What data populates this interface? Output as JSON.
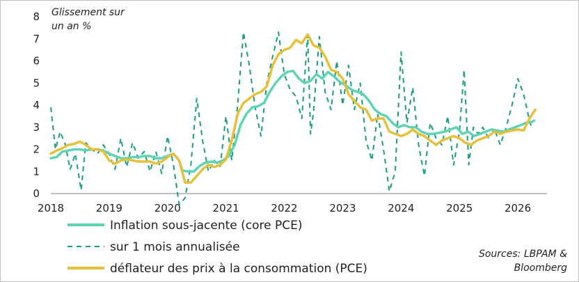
{
  "chart_data": {
    "type": "line",
    "ylabel_lines": [
      "Glissement sur",
      "un an %"
    ],
    "ylim": [
      0,
      8
    ],
    "yticks": [
      0,
      1,
      2,
      3,
      4,
      5,
      6,
      7,
      8
    ],
    "xlim": [
      2018,
      2026.5
    ],
    "xticks": [
      "2018",
      "2019",
      "2020",
      "2021",
      "2022",
      "2023",
      "2024",
      "2025",
      "2026"
    ],
    "legend_position": "bottom-left",
    "source_lines": [
      "Sources: LBPAM &",
      "Bloomberg"
    ],
    "series": [
      {
        "name": "Inflation sous-jacente (core PCE)",
        "color": "#5fd3b3",
        "style": "solid",
        "points": [
          [
            2018.0,
            1.6
          ],
          [
            2018.1,
            1.65
          ],
          [
            2018.2,
            1.9
          ],
          [
            2018.3,
            1.95
          ],
          [
            2018.4,
            2.0
          ],
          [
            2018.5,
            2.0
          ],
          [
            2018.6,
            1.95
          ],
          [
            2018.7,
            2.0
          ],
          [
            2018.8,
            2.0
          ],
          [
            2018.9,
            1.95
          ],
          [
            2019.0,
            1.8
          ],
          [
            2019.1,
            1.7
          ],
          [
            2019.2,
            1.6
          ],
          [
            2019.3,
            1.6
          ],
          [
            2019.4,
            1.65
          ],
          [
            2019.5,
            1.65
          ],
          [
            2019.6,
            1.7
          ],
          [
            2019.7,
            1.7
          ],
          [
            2019.8,
            1.6
          ],
          [
            2019.9,
            1.6
          ],
          [
            2020.0,
            1.7
          ],
          [
            2020.1,
            1.8
          ],
          [
            2020.2,
            1.5
          ],
          [
            2020.25,
            1.05
          ],
          [
            2020.35,
            1.0
          ],
          [
            2020.45,
            1.0
          ],
          [
            2020.55,
            1.25
          ],
          [
            2020.65,
            1.4
          ],
          [
            2020.75,
            1.45
          ],
          [
            2020.85,
            1.4
          ],
          [
            2020.95,
            1.5
          ],
          [
            2021.05,
            1.7
          ],
          [
            2021.15,
            2.2
          ],
          [
            2021.25,
            3.1
          ],
          [
            2021.35,
            3.6
          ],
          [
            2021.45,
            3.9
          ],
          [
            2021.55,
            3.95
          ],
          [
            2021.65,
            4.1
          ],
          [
            2021.75,
            4.6
          ],
          [
            2021.85,
            5.0
          ],
          [
            2021.95,
            5.3
          ],
          [
            2022.05,
            5.5
          ],
          [
            2022.15,
            5.55
          ],
          [
            2022.25,
            5.2
          ],
          [
            2022.35,
            5.0
          ],
          [
            2022.45,
            5.1
          ],
          [
            2022.55,
            5.4
          ],
          [
            2022.65,
            5.2
          ],
          [
            2022.75,
            5.5
          ],
          [
            2022.85,
            5.3
          ],
          [
            2022.95,
            5.05
          ],
          [
            2023.05,
            4.9
          ],
          [
            2023.15,
            4.7
          ],
          [
            2023.25,
            4.6
          ],
          [
            2023.35,
            4.5
          ],
          [
            2023.45,
            4.2
          ],
          [
            2023.55,
            3.8
          ],
          [
            2023.65,
            3.6
          ],
          [
            2023.75,
            3.5
          ],
          [
            2023.85,
            3.2
          ],
          [
            2023.95,
            3.0
          ],
          [
            2024.05,
            3.1
          ],
          [
            2024.15,
            3.0
          ],
          [
            2024.25,
            3.0
          ],
          [
            2024.35,
            2.8
          ],
          [
            2024.45,
            2.7
          ],
          [
            2024.55,
            2.7
          ],
          [
            2024.65,
            2.75
          ],
          [
            2024.75,
            2.8
          ],
          [
            2024.85,
            2.9
          ],
          [
            2024.95,
            3.0
          ],
          [
            2025.05,
            2.7
          ],
          [
            2025.15,
            2.8
          ],
          [
            2025.25,
            2.6
          ],
          [
            2025.35,
            2.7
          ],
          [
            2025.45,
            2.8
          ],
          [
            2025.55,
            2.9
          ],
          [
            2025.65,
            2.85
          ],
          [
            2025.75,
            2.8
          ],
          [
            2025.85,
            2.9
          ],
          [
            2025.95,
            3.0
          ],
          [
            2026.05,
            3.1
          ],
          [
            2026.15,
            3.2
          ],
          [
            2026.25,
            3.25
          ],
          [
            2026.28,
            3.3
          ]
        ]
      },
      {
        "name": "sur 1 mois annualisée",
        "color": "#1a9c82",
        "style": "dashed",
        "points": [
          [
            2018.0,
            3.9
          ],
          [
            2018.08,
            2.0
          ],
          [
            2018.16,
            2.8
          ],
          [
            2018.25,
            2.2
          ],
          [
            2018.33,
            1.1
          ],
          [
            2018.42,
            1.8
          ],
          [
            2018.52,
            0.15
          ],
          [
            2018.6,
            2.3
          ],
          [
            2018.7,
            2.0
          ],
          [
            2018.8,
            1.8
          ],
          [
            2018.9,
            2.2
          ],
          [
            2019.0,
            1.8
          ],
          [
            2019.1,
            1.1
          ],
          [
            2019.2,
            2.5
          ],
          [
            2019.3,
            1.2
          ],
          [
            2019.4,
            2.3
          ],
          [
            2019.5,
            1.6
          ],
          [
            2019.6,
            1.9
          ],
          [
            2019.7,
            1.0
          ],
          [
            2019.8,
            1.9
          ],
          [
            2019.9,
            0.9
          ],
          [
            2020.0,
            2.6
          ],
          [
            2020.1,
            1.3
          ],
          [
            2020.2,
            -0.5
          ],
          [
            2020.3,
            -0.2
          ],
          [
            2020.4,
            1.3
          ],
          [
            2020.5,
            4.3
          ],
          [
            2020.6,
            2.4
          ],
          [
            2020.7,
            1.0
          ],
          [
            2020.8,
            1.5
          ],
          [
            2020.9,
            1.2
          ],
          [
            2021.0,
            3.5
          ],
          [
            2021.1,
            1.5
          ],
          [
            2021.2,
            4.0
          ],
          [
            2021.3,
            7.3
          ],
          [
            2021.4,
            5.8
          ],
          [
            2021.5,
            3.9
          ],
          [
            2021.6,
            2.6
          ],
          [
            2021.7,
            5.0
          ],
          [
            2021.8,
            6.2
          ],
          [
            2021.9,
            7.3
          ],
          [
            2022.0,
            5.4
          ],
          [
            2022.1,
            4.7
          ],
          [
            2022.2,
            4.4
          ],
          [
            2022.3,
            3.4
          ],
          [
            2022.4,
            7.2
          ],
          [
            2022.45,
            2.7
          ],
          [
            2022.5,
            3.7
          ],
          [
            2022.6,
            7.1
          ],
          [
            2022.7,
            4.6
          ],
          [
            2022.8,
            3.8
          ],
          [
            2022.9,
            6.0
          ],
          [
            2023.0,
            4.0
          ],
          [
            2023.1,
            5.8
          ],
          [
            2023.2,
            3.8
          ],
          [
            2023.3,
            5.0
          ],
          [
            2023.4,
            2.4
          ],
          [
            2023.5,
            1.5
          ],
          [
            2023.6,
            3.6
          ],
          [
            2023.7,
            2.0
          ],
          [
            2023.8,
            0.1
          ],
          [
            2023.9,
            1.0
          ],
          [
            2024.0,
            6.4
          ],
          [
            2024.1,
            3.2
          ],
          [
            2024.2,
            4.8
          ],
          [
            2024.3,
            2.2
          ],
          [
            2024.4,
            0.8
          ],
          [
            2024.5,
            3.2
          ],
          [
            2024.6,
            2.5
          ],
          [
            2024.7,
            2.2
          ],
          [
            2024.8,
            3.5
          ],
          [
            2024.9,
            1.3
          ],
          [
            2025.0,
            2.8
          ],
          [
            2025.08,
            5.6
          ],
          [
            2025.16,
            1.3
          ],
          [
            2025.24,
            3.0
          ],
          [
            2025.32,
            2.7
          ],
          [
            2025.4,
            3.0
          ],
          [
            2025.5,
            2.5
          ],
          [
            2025.6,
            2.9
          ],
          [
            2025.7,
            2.2
          ],
          [
            2025.8,
            3.0
          ],
          [
            2025.9,
            4.0
          ],
          [
            2026.0,
            5.2
          ],
          [
            2026.1,
            4.5
          ],
          [
            2026.2,
            3.3
          ],
          [
            2026.25,
            2.9
          ]
        ]
      },
      {
        "name": "déflateur des prix à la consommation (PCE)",
        "color": "#e6c03a",
        "style": "solid",
        "points": [
          [
            2018.0,
            1.8
          ],
          [
            2018.1,
            1.95
          ],
          [
            2018.2,
            2.05
          ],
          [
            2018.3,
            2.2
          ],
          [
            2018.4,
            2.25
          ],
          [
            2018.5,
            2.35
          ],
          [
            2018.6,
            2.2
          ],
          [
            2018.7,
            2.0
          ],
          [
            2018.8,
            2.0
          ],
          [
            2018.9,
            1.9
          ],
          [
            2019.0,
            1.5
          ],
          [
            2019.1,
            1.35
          ],
          [
            2019.2,
            1.5
          ],
          [
            2019.3,
            1.55
          ],
          [
            2019.4,
            1.5
          ],
          [
            2019.5,
            1.45
          ],
          [
            2019.6,
            1.45
          ],
          [
            2019.7,
            1.45
          ],
          [
            2019.8,
            1.35
          ],
          [
            2019.9,
            1.45
          ],
          [
            2020.0,
            1.65
          ],
          [
            2020.1,
            1.8
          ],
          [
            2020.2,
            1.5
          ],
          [
            2020.3,
            0.5
          ],
          [
            2020.4,
            0.5
          ],
          [
            2020.5,
            0.8
          ],
          [
            2020.6,
            1.1
          ],
          [
            2020.7,
            1.3
          ],
          [
            2020.8,
            1.2
          ],
          [
            2020.9,
            1.3
          ],
          [
            2021.0,
            1.55
          ],
          [
            2021.1,
            2.4
          ],
          [
            2021.2,
            3.6
          ],
          [
            2021.3,
            4.1
          ],
          [
            2021.4,
            4.3
          ],
          [
            2021.5,
            4.5
          ],
          [
            2021.6,
            4.6
          ],
          [
            2021.7,
            4.85
          ],
          [
            2021.8,
            5.8
          ],
          [
            2021.9,
            6.3
          ],
          [
            2022.0,
            6.5
          ],
          [
            2022.1,
            6.6
          ],
          [
            2022.2,
            6.95
          ],
          [
            2022.3,
            6.8
          ],
          [
            2022.4,
            7.2
          ],
          [
            2022.5,
            6.7
          ],
          [
            2022.6,
            6.6
          ],
          [
            2022.7,
            6.2
          ],
          [
            2022.8,
            5.6
          ],
          [
            2022.9,
            5.5
          ],
          [
            2023.0,
            5.2
          ],
          [
            2023.1,
            4.5
          ],
          [
            2023.2,
            4.2
          ],
          [
            2023.3,
            3.9
          ],
          [
            2023.4,
            3.8
          ],
          [
            2023.5,
            3.3
          ],
          [
            2023.6,
            3.4
          ],
          [
            2023.7,
            3.4
          ],
          [
            2023.8,
            2.8
          ],
          [
            2023.9,
            2.7
          ],
          [
            2024.0,
            2.6
          ],
          [
            2024.1,
            2.7
          ],
          [
            2024.2,
            2.9
          ],
          [
            2024.3,
            2.7
          ],
          [
            2024.4,
            2.6
          ],
          [
            2024.5,
            2.4
          ],
          [
            2024.6,
            2.2
          ],
          [
            2024.7,
            2.4
          ],
          [
            2024.8,
            2.5
          ],
          [
            2024.9,
            2.6
          ],
          [
            2025.0,
            2.5
          ],
          [
            2025.1,
            2.3
          ],
          [
            2025.2,
            2.2
          ],
          [
            2025.3,
            2.4
          ],
          [
            2025.4,
            2.5
          ],
          [
            2025.5,
            2.6
          ],
          [
            2025.6,
            2.8
          ],
          [
            2025.7,
            2.7
          ],
          [
            2025.8,
            2.8
          ],
          [
            2025.9,
            2.85
          ],
          [
            2026.0,
            2.9
          ],
          [
            2026.1,
            2.85
          ],
          [
            2026.2,
            3.4
          ],
          [
            2026.3,
            3.8
          ]
        ]
      }
    ]
  }
}
